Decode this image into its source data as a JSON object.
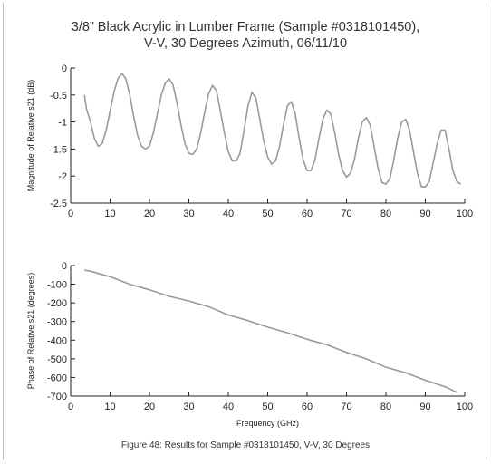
{
  "title_line1": "3/8” Black Acrylic in Lumber Frame (Sample #0318101450),",
  "title_line2": "V-V, 30 Degrees Azimuth, 06/11/10",
  "caption": "Figure 48: Results for Sample #0318101450, V-V, 30 Degrees",
  "colors": {
    "trace": "#9a9a9a",
    "axis": "#222222",
    "border": "#bdbdbd"
  },
  "chart_data": [
    {
      "type": "line",
      "ylabel": "Magnitude of Relative s21 (dB)",
      "xlabel": "",
      "xlim": [
        0,
        100
      ],
      "ylim": [
        -2.5,
        0
      ],
      "xticks": [
        0,
        10,
        20,
        30,
        40,
        50,
        60,
        70,
        80,
        90,
        100
      ],
      "yticks": [
        0,
        -0.5,
        -1,
        -1.5,
        -2,
        -2.5
      ],
      "grid": false,
      "series": [
        {
          "x": [
            3.5,
            4,
            5,
            6,
            7,
            8,
            9,
            10,
            11,
            12,
            13,
            14,
            15,
            16,
            17,
            18,
            19,
            20,
            21,
            22,
            23,
            24,
            25,
            26,
            27,
            28,
            29,
            30,
            31,
            32,
            33,
            34,
            35,
            36,
            37,
            38,
            39,
            40,
            41,
            42,
            43,
            44,
            45,
            46,
            47,
            48,
            49,
            50,
            51,
            52,
            53,
            54,
            55,
            56,
            57,
            58,
            59,
            60,
            61,
            62,
            63,
            64,
            65,
            66,
            67,
            68,
            69,
            70,
            71,
            72,
            73,
            74,
            75,
            76,
            77,
            78,
            79,
            80,
            81,
            82,
            83,
            84,
            85,
            86,
            87,
            88,
            89,
            90,
            91,
            92,
            93,
            94,
            95,
            96,
            97,
            98,
            99
          ],
          "y": [
            -0.5,
            -0.75,
            -1.0,
            -1.3,
            -1.45,
            -1.4,
            -1.15,
            -0.8,
            -0.45,
            -0.2,
            -0.1,
            -0.2,
            -0.5,
            -0.9,
            -1.25,
            -1.45,
            -1.5,
            -1.45,
            -1.2,
            -0.85,
            -0.5,
            -0.28,
            -0.2,
            -0.32,
            -0.65,
            -1.05,
            -1.4,
            -1.58,
            -1.6,
            -1.5,
            -1.2,
            -0.82,
            -0.48,
            -0.32,
            -0.42,
            -0.8,
            -1.2,
            -1.55,
            -1.72,
            -1.72,
            -1.58,
            -1.15,
            -0.7,
            -0.45,
            -0.55,
            -0.95,
            -1.35,
            -1.65,
            -1.78,
            -1.72,
            -1.45,
            -1.05,
            -0.7,
            -0.62,
            -0.85,
            -1.3,
            -1.7,
            -1.9,
            -1.9,
            -1.7,
            -1.3,
            -0.95,
            -0.78,
            -0.85,
            -1.2,
            -1.6,
            -1.9,
            -2.02,
            -1.95,
            -1.7,
            -1.3,
            -1.0,
            -0.92,
            -1.05,
            -1.45,
            -1.85,
            -2.12,
            -2.15,
            -2.05,
            -1.7,
            -1.3,
            -1.0,
            -0.95,
            -1.15,
            -1.55,
            -1.95,
            -2.2,
            -2.2,
            -2.1,
            -1.75,
            -1.4,
            -1.15,
            -1.15,
            -1.5,
            -1.9,
            -2.1,
            -2.15
          ]
        }
      ]
    },
    {
      "type": "line",
      "ylabel": "Phase of Relative s21 (degrees)",
      "xlabel": "Frequency (GHz)",
      "xlim": [
        0,
        100
      ],
      "ylim": [
        -700,
        0
      ],
      "xticks": [
        0,
        10,
        20,
        30,
        40,
        50,
        60,
        70,
        80,
        90,
        100
      ],
      "yticks": [
        0,
        -100,
        -200,
        -300,
        -400,
        -500,
        -600,
        -700
      ],
      "grid": false,
      "series": [
        {
          "x": [
            3.5,
            5,
            10,
            15,
            20,
            25,
            30,
            35,
            40,
            45,
            50,
            55,
            60,
            65,
            70,
            75,
            80,
            85,
            90,
            95,
            98
          ],
          "y": [
            -25,
            -30,
            -60,
            -100,
            -130,
            -165,
            -190,
            -220,
            -265,
            -295,
            -330,
            -360,
            -395,
            -425,
            -465,
            -500,
            -545,
            -575,
            -615,
            -650,
            -680
          ]
        }
      ]
    }
  ]
}
